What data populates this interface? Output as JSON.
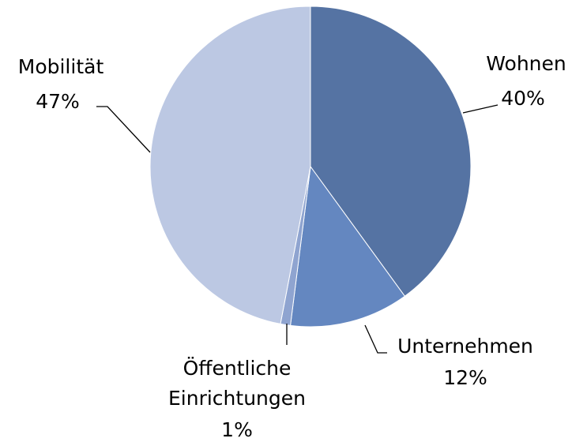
{
  "chart_data": {
    "type": "pie",
    "categories": [
      "Wohnen",
      "Unternehmen",
      "Öffentliche Einrichtungen",
      "Mobilität"
    ],
    "values": [
      40,
      12,
      1,
      47
    ],
    "value_labels": [
      "40%",
      "12%",
      "1%",
      "47%"
    ],
    "colors": [
      "#5573a3",
      "#6487c0",
      "#8fa4d0",
      "#bcc8e3"
    ]
  }
}
